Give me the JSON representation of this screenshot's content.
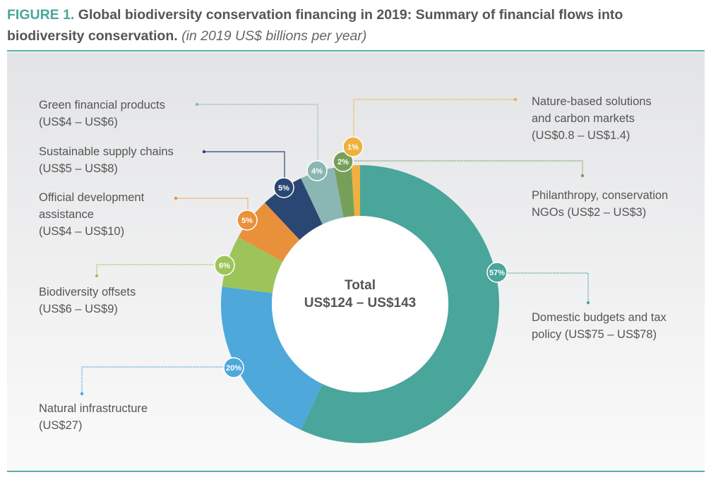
{
  "title": {
    "figure": "FIGURE 1.",
    "text": "Global biodiversity conservation financing in 2019: Summary of financial flows into biodiversity conservation.",
    "unit": "(in 2019 US$ billions per year)"
  },
  "chart_data": {
    "type": "pie",
    "donut": true,
    "center_label": {
      "line1": "Total",
      "line2": "US$124 – US$143"
    },
    "slices": [
      {
        "name": "Domestic budgets and tax policy",
        "range": "(US$75 – US$78)",
        "value": 57,
        "pct_label": "57%",
        "color": "#4aa59b"
      },
      {
        "name": "Natural infrastructure",
        "range": "(US$27)",
        "value": 20,
        "pct_label": "20%",
        "color": "#4ea8da"
      },
      {
        "name": "Biodiversity offsets",
        "range": "(US$6 – US$9)",
        "value": 6,
        "pct_label": "6%",
        "color": "#9cc45a"
      },
      {
        "name": "Official development assistance",
        "range": "(US$4 – US$10)",
        "value": 5,
        "pct_label": "5%",
        "color": "#e9913a"
      },
      {
        "name": "Sustainable supply chains",
        "range": "(US$5 – US$8)",
        "value": 5,
        "pct_label": "5%",
        "color": "#2a4673"
      },
      {
        "name": "Green financial products",
        "range": "(US$4 – US$6)",
        "value": 4,
        "pct_label": "4%",
        "color": "#8ab6b3"
      },
      {
        "name": "Philanthropy, conservation NGOs",
        "range": "(US$2 – US$3)",
        "value": 2,
        "pct_label": "2%",
        "color": "#76a05a"
      },
      {
        "name": "Nature-based solutions and carbon markets",
        "range": "(US$0.8 – US$1.4)",
        "value": 1,
        "pct_label": "1%",
        "color": "#f0b040"
      }
    ],
    "label_lines": {
      "domestic": [
        "Domestic budgets and tax",
        "policy (US$75 – US$78)"
      ],
      "natural": [
        "Natural infrastructure",
        "(US$27)"
      ],
      "offsets": [
        "Biodiversity offsets",
        "(US$6 – US$9)"
      ],
      "oda": [
        "Official development",
        "assistance",
        "(US$4 – US$10)"
      ],
      "supply": [
        "Sustainable supply chains",
        "(US$5 – US$8)"
      ],
      "green": [
        "Green financial products",
        "(US$4 – US$6)"
      ],
      "philanthropy": [
        "Philanthropy, conservation",
        "NGOs (US$2 – US$3)"
      ],
      "nature": [
        "Nature-based solutions",
        "and carbon markets",
        "(US$0.8 – US$1.4)"
      ]
    }
  }
}
